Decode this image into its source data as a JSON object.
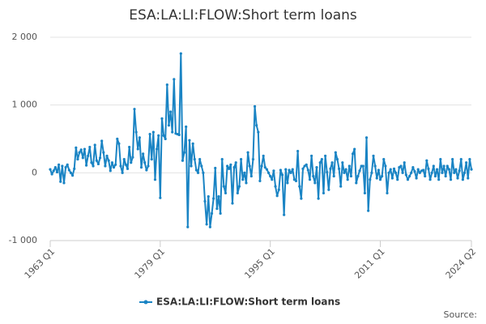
{
  "chart_data": {
    "type": "line",
    "title": "ESA:LA:LI:FLOW:Short term loans",
    "source": "Source:",
    "categories": [
      "1963 Q1",
      null,
      null,
      null,
      null,
      null,
      null,
      null,
      null,
      null,
      null,
      null,
      null,
      null,
      null,
      null,
      null,
      null,
      null,
      null,
      null,
      null,
      null,
      null,
      null,
      null,
      null,
      null,
      null,
      null,
      null,
      null,
      null,
      null,
      null,
      null,
      null,
      null,
      null,
      null,
      null,
      null,
      null,
      null,
      null,
      null,
      null,
      null,
      null,
      null,
      null,
      null,
      null,
      null,
      null,
      null,
      null,
      null,
      null,
      null,
      null,
      null,
      null,
      null,
      "1979 Q1",
      null,
      null,
      null,
      null,
      null,
      null,
      null,
      null,
      null,
      null,
      null,
      null,
      null,
      null,
      null,
      null,
      null,
      null,
      null,
      null,
      null,
      null,
      null,
      null,
      null,
      null,
      null,
      null,
      null,
      null,
      null,
      null,
      null,
      null,
      null,
      null,
      null,
      null,
      null,
      null,
      null,
      null,
      null,
      null,
      null,
      null,
      null,
      null,
      null,
      null,
      null,
      null,
      null,
      null,
      null,
      null,
      null,
      null,
      null,
      null,
      null,
      null,
      null,
      "1995 Q1",
      null,
      null,
      null,
      null,
      null,
      null,
      null,
      null,
      null,
      null,
      null,
      null,
      null,
      null,
      null,
      null,
      null,
      null,
      null,
      null,
      null,
      null,
      null,
      null,
      null,
      null,
      null,
      null,
      null,
      null,
      null,
      null,
      null,
      null,
      null,
      null,
      null,
      null,
      null,
      null,
      null,
      null,
      null,
      null,
      null,
      null,
      null,
      null,
      null,
      null,
      null,
      null,
      null,
      null,
      null,
      null,
      null,
      null,
      null,
      null,
      null,
      null,
      null,
      "2011 Q1",
      null,
      null,
      null,
      null,
      null,
      null,
      null,
      null,
      null,
      null,
      null,
      null,
      null,
      null,
      null,
      null,
      null,
      null,
      null,
      null,
      null,
      null,
      null,
      null,
      null,
      null,
      null,
      null,
      null,
      null,
      null,
      null,
      null,
      null,
      null,
      null,
      null,
      null,
      null,
      null,
      null,
      null,
      null,
      null,
      null,
      null,
      null,
      null,
      null,
      null,
      null,
      null,
      "2024 Q2"
    ],
    "series": [
      {
        "name": "ESA:LA:LI:FLOW:Short term loans",
        "color": "#1a84c4",
        "values": [
          50,
          -20,
          30,
          80,
          10,
          120,
          -130,
          100,
          -150,
          80,
          120,
          40,
          0,
          -40,
          60,
          370,
          200,
          300,
          340,
          220,
          350,
          110,
          250,
          380,
          150,
          100,
          410,
          180,
          130,
          220,
          470,
          300,
          100,
          250,
          180,
          30,
          150,
          80,
          120,
          500,
          430,
          100,
          0,
          200,
          120,
          60,
          380,
          150,
          230,
          940,
          600,
          350,
          520,
          80,
          280,
          150,
          40,
          100,
          570,
          200,
          600,
          -100,
          350,
          550,
          -370,
          800,
          550,
          500,
          1300,
          700,
          900,
          600,
          1380,
          580,
          570,
          560,
          1760,
          180,
          300,
          680,
          -800,
          480,
          100,
          430,
          200,
          40,
          0,
          200,
          100,
          0,
          -420,
          -760,
          -350,
          -800,
          -600,
          -380,
          70,
          -530,
          -350,
          -600,
          200,
          -200,
          -300,
          100,
          60,
          120,
          -450,
          80,
          150,
          -300,
          -200,
          200,
          -100,
          0,
          -150,
          300,
          100,
          -50,
          200,
          980,
          700,
          600,
          -120,
          100,
          250,
          80,
          50,
          0,
          -50,
          -100,
          30,
          -200,
          -340,
          -250,
          40,
          -30,
          -620,
          50,
          -150,
          40,
          0,
          50,
          -100,
          -120,
          320,
          -200,
          -380,
          60,
          100,
          120,
          40,
          -100,
          250,
          -50,
          -150,
          80,
          -380,
          150,
          200,
          -300,
          250,
          10,
          -250,
          60,
          150,
          -50,
          300,
          200,
          60,
          -200,
          150,
          0,
          50,
          -100,
          100,
          -50,
          280,
          350,
          -150,
          -50,
          30,
          100,
          100,
          -300,
          520,
          -560,
          -100,
          0,
          250,
          100,
          -80,
          40,
          -100,
          -50,
          200,
          100,
          -300,
          0,
          50,
          -80,
          60,
          0,
          -100,
          80,
          100,
          0,
          150,
          -30,
          -100,
          -50,
          0,
          80,
          20,
          -80,
          50,
          0,
          30,
          40,
          -50,
          180,
          60,
          -100,
          0,
          100,
          -50,
          50,
          -100,
          200,
          0,
          100,
          -50,
          100,
          50,
          -100,
          200,
          0,
          50,
          -80,
          30,
          200,
          -100,
          0,
          150,
          -80,
          200,
          50
        ]
      }
    ],
    "ylim": [
      -1000,
      2000
    ],
    "yticks": [
      {
        "value": 2000,
        "label": "2 000"
      },
      {
        "value": 1000,
        "label": "1 000"
      },
      0,
      {
        "value": -1000,
        "label": "-1 000"
      }
    ],
    "grid": true
  }
}
